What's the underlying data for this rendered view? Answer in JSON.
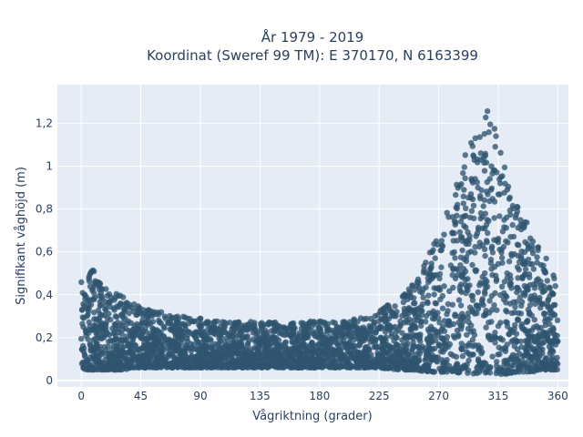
{
  "chart_data": {
    "type": "scatter",
    "title_line1": "År 1979 - 2019",
    "title_line2": "Koordinat (Sweref 99 TM): E 370170, N 6163399",
    "xlabel": "Vågriktning (grader)",
    "ylabel": "Signifikant våghöjd (m)",
    "xlim": [
      -18,
      368
    ],
    "ylim": [
      -0.03,
      1.38
    ],
    "x_ticks": [
      0,
      45,
      90,
      135,
      180,
      225,
      270,
      315,
      360
    ],
    "x_tick_labels": [
      "0",
      "45",
      "90",
      "135",
      "180",
      "225",
      "270",
      "315",
      "360"
    ],
    "y_ticks": [
      0,
      0.2,
      0.4,
      0.6,
      0.8,
      1.0,
      1.2
    ],
    "y_tick_labels": [
      "0",
      "0,2",
      "0,4",
      "0,6",
      "0,8",
      "1",
      "1,2"
    ],
    "grid": true,
    "marker_color": "#2f5470",
    "plot_bg": "#e5ecf6",
    "envelope": {
      "x": [
        0,
        5,
        10,
        15,
        20,
        30,
        45,
        60,
        75,
        90,
        105,
        120,
        135,
        150,
        165,
        180,
        195,
        210,
        225,
        240,
        250,
        260,
        270,
        280,
        290,
        297,
        303,
        310,
        315,
        320,
        330,
        340,
        350,
        360
      ],
      "y_min": [
        0.05,
        0.05,
        0.05,
        0.05,
        0.05,
        0.05,
        0.06,
        0.06,
        0.06,
        0.06,
        0.06,
        0.06,
        0.06,
        0.06,
        0.06,
        0.06,
        0.06,
        0.06,
        0.06,
        0.05,
        0.05,
        0.04,
        0.04,
        0.04,
        0.03,
        0.03,
        0.03,
        0.03,
        0.03,
        0.03,
        0.04,
        0.04,
        0.05,
        0.05
      ],
      "y_max": [
        0.5,
        0.5,
        0.52,
        0.45,
        0.42,
        0.4,
        0.34,
        0.32,
        0.3,
        0.29,
        0.28,
        0.28,
        0.28,
        0.27,
        0.27,
        0.28,
        0.28,
        0.29,
        0.33,
        0.38,
        0.45,
        0.55,
        0.7,
        0.85,
        1.05,
        1.2,
        1.28,
        1.25,
        1.15,
        1.05,
        0.85,
        0.68,
        0.58,
        0.5
      ]
    }
  }
}
